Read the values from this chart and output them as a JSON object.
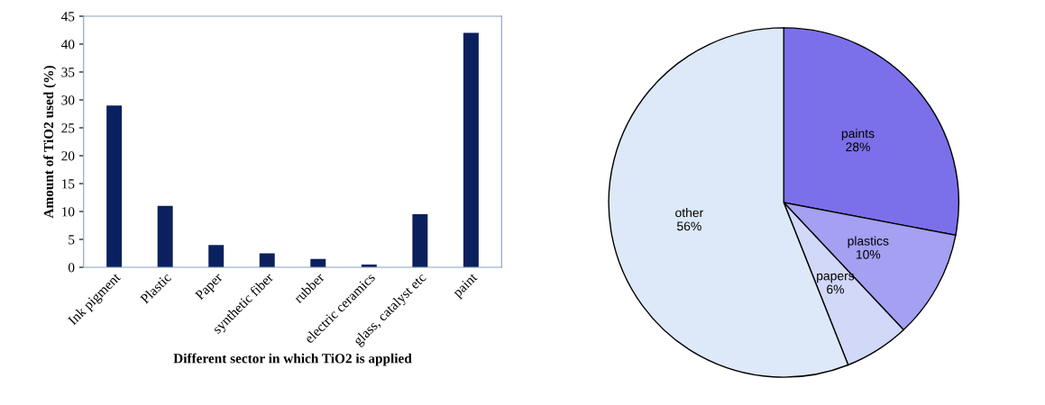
{
  "chart_data": [
    {
      "type": "bar",
      "xlabel": "Different sector in which TiO2 is applied",
      "ylabel": "Amount of TiO2 used (%)",
      "categories": [
        "Ink pigment",
        "Plastic",
        "Paper",
        "synthetic fiber",
        "rubber",
        "electric ceramics",
        "glass, catalyst etc",
        "paint"
      ],
      "values": [
        29,
        11,
        4,
        2.5,
        1.5,
        0.5,
        9.5,
        42
      ],
      "color": "#0b215e",
      "ylim": [
        0,
        45
      ],
      "yticks": [
        0,
        5,
        10,
        15,
        20,
        25,
        30,
        35,
        40,
        45
      ],
      "grid": false,
      "legend": false
    },
    {
      "type": "pie",
      "categories": [
        "paints",
        "plastics",
        "papers",
        "other"
      ],
      "values": [
        28,
        10,
        6,
        56
      ],
      "colors": [
        "#7b70ea",
        "#a4a0f2",
        "#d2d8f8",
        "#dde9f9"
      ],
      "value_labels": [
        "28%",
        "10%",
        "6%",
        "56%"
      ],
      "legend": false
    }
  ]
}
